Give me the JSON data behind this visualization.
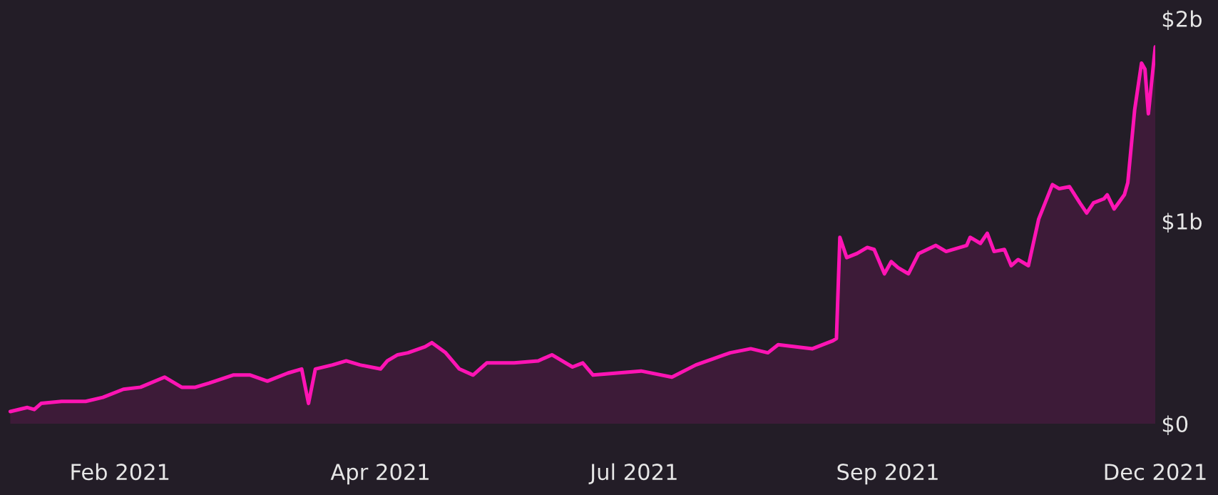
{
  "chart_data": {
    "type": "area",
    "x": [
      "2021-01-01",
      "2021-01-06",
      "2021-01-08",
      "2021-01-10",
      "2021-01-16",
      "2021-01-23",
      "2021-01-28",
      "2021-02-03",
      "2021-02-08",
      "2021-02-15",
      "2021-02-20",
      "2021-02-24",
      "2021-02-28",
      "2021-03-07",
      "2021-03-12",
      "2021-03-17",
      "2021-03-23",
      "2021-03-27",
      "2021-03-29",
      "2021-03-31",
      "2021-04-05",
      "2021-04-09",
      "2021-04-13",
      "2021-04-19",
      "2021-04-21",
      "2021-04-24",
      "2021-04-27",
      "2021-05-02",
      "2021-05-04",
      "2021-05-08",
      "2021-05-12",
      "2021-05-16",
      "2021-05-20",
      "2021-05-28",
      "2021-06-04",
      "2021-06-08",
      "2021-06-14",
      "2021-06-17",
      "2021-06-20",
      "2021-06-27",
      "2021-07-04",
      "2021-07-13",
      "2021-07-20",
      "2021-07-25",
      "2021-07-30",
      "2021-08-05",
      "2021-08-10",
      "2021-08-13",
      "2021-08-23",
      "2021-08-29",
      "2021-08-30",
      "2021-08-31",
      "2021-09-02",
      "2021-09-05",
      "2021-09-08",
      "2021-09-10",
      "2021-09-13",
      "2021-09-15",
      "2021-09-17",
      "2021-09-20",
      "2021-09-23",
      "2021-09-28",
      "2021-10-01",
      "2021-10-07",
      "2021-10-08",
      "2021-10-11",
      "2021-10-13",
      "2021-10-15",
      "2021-10-18",
      "2021-10-20",
      "2021-10-22",
      "2021-10-25",
      "2021-10-28",
      "2021-11-01",
      "2021-11-03",
      "2021-11-06",
      "2021-11-09",
      "2021-11-11",
      "2021-11-13",
      "2021-11-16",
      "2021-11-17",
      "2021-11-19",
      "2021-11-22",
      "2021-11-23",
      "2021-11-25",
      "2021-11-27",
      "2021-11-28",
      "2021-11-29",
      "2021-12-01"
    ],
    "series": [
      {
        "color": "#ff14b4",
        "values": [
          0.06,
          0.08,
          0.07,
          0.1,
          0.11,
          0.11,
          0.13,
          0.17,
          0.18,
          0.23,
          0.18,
          0.18,
          0.2,
          0.24,
          0.24,
          0.21,
          0.25,
          0.27,
          0.1,
          0.27,
          0.29,
          0.31,
          0.29,
          0.27,
          0.31,
          0.34,
          0.35,
          0.38,
          0.4,
          0.35,
          0.27,
          0.24,
          0.3,
          0.3,
          0.31,
          0.34,
          0.28,
          0.3,
          0.24,
          0.25,
          0.26,
          0.23,
          0.29,
          0.32,
          0.35,
          0.37,
          0.35,
          0.39,
          0.37,
          0.41,
          0.42,
          0.92,
          0.82,
          0.84,
          0.87,
          0.86,
          0.74,
          0.8,
          0.77,
          0.74,
          0.84,
          0.88,
          0.85,
          0.88,
          0.92,
          0.89,
          0.94,
          0.85,
          0.86,
          0.78,
          0.81,
          0.78,
          1.01,
          1.18,
          1.16,
          1.17,
          1.09,
          1.04,
          1.09,
          1.11,
          1.13,
          1.06,
          1.13,
          1.19,
          1.55,
          1.78,
          1.75,
          1.53,
          1.86
        ]
      }
    ],
    "xlim": [
      "2020-12-29",
      "2021-12-01"
    ],
    "xticks": [
      {
        "value": "2021-02-02",
        "label": "Feb 2021"
      },
      {
        "value": "2021-04-19",
        "label": "Apr 2021"
      },
      {
        "value": "2021-07-02",
        "label": "Jul 2021"
      },
      {
        "value": "2021-09-14",
        "label": "Sep 2021"
      },
      {
        "value": "2021-12-01",
        "label": "Dec 2021"
      }
    ],
    "ylim": [
      0,
      2
    ],
    "yticks": [
      {
        "value": 0,
        "label": "$0"
      },
      {
        "value": 1,
        "label": "$1b"
      },
      {
        "value": 2,
        "label": "$2b"
      }
    ],
    "grid": false,
    "legend": false
  }
}
